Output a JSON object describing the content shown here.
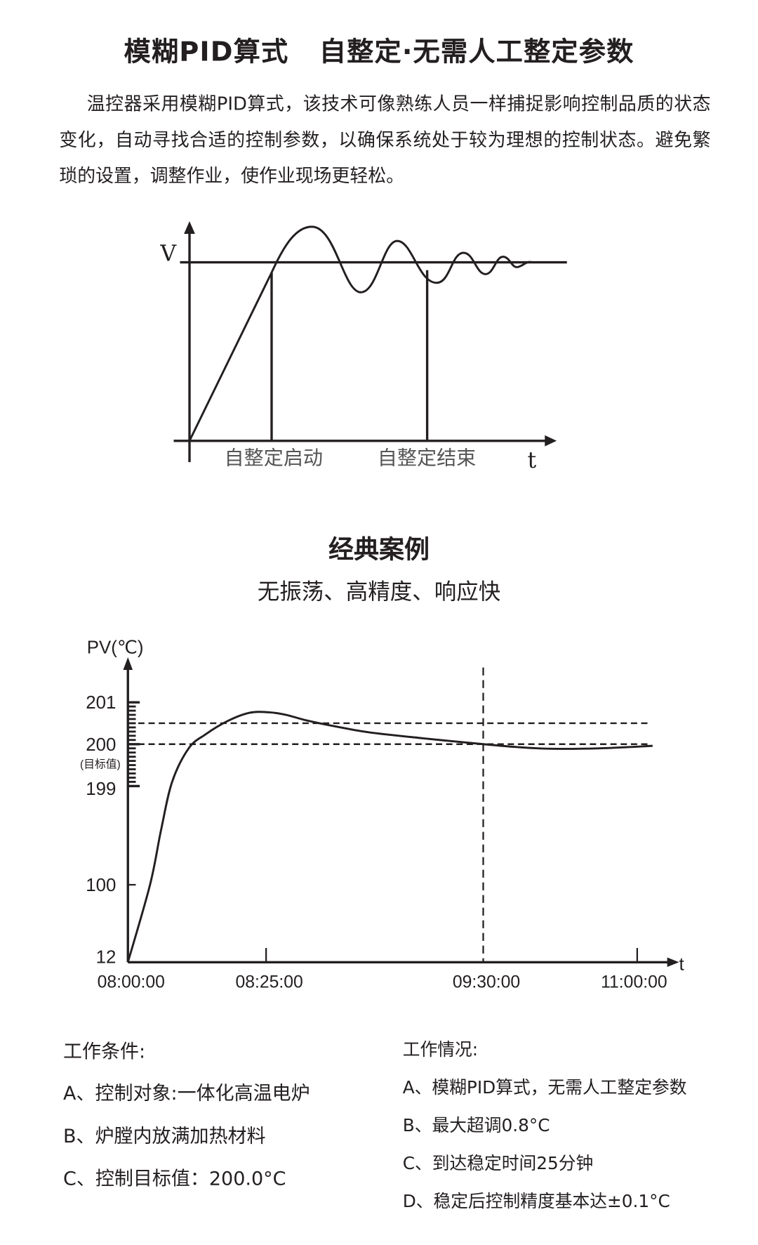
{
  "header": {
    "title": "模糊PID算式   自整定·无需人工整定参数",
    "description": "温控器采用模糊PID算式，该技术可像熟练人员一样捕捉影响控制品质的状态变化，自动寻找合适的控制参数，以确保系统处于较为理想的控制状态。避免繁琐的设置，调整作业，使作业现场更轻松。"
  },
  "diagram": {
    "y_label": "V",
    "x_label": "t",
    "start_label": "自整定启动",
    "end_label": "自整定结束"
  },
  "case": {
    "title": "经典案例",
    "subtitle": "无振荡、高精度、响应快"
  },
  "chart_data": {
    "type": "line",
    "ylabel": "PV(℃)",
    "xlabel": "t",
    "x_ticks": [
      "08:00:00",
      "08:25:00",
      "09:30:00",
      "11:00:00"
    ],
    "x_tick_minutes": [
      0,
      25,
      90,
      180
    ],
    "y_ticks": [
      12,
      100,
      199,
      200,
      201
    ],
    "y_tick_labels": [
      "12",
      "100",
      "199",
      "200",
      "201"
    ],
    "y_target_note": "(目标值)",
    "minor_tick_step": 0.1,
    "reference_lines": {
      "horizontal": [
        200,
        200.5
      ],
      "vertical_minutes": 90
    },
    "series": [
      {
        "points_minutes_temp": [
          [
            0,
            12
          ],
          [
            4,
            100
          ],
          [
            6,
            155
          ],
          [
            8,
            199.1
          ],
          [
            11,
            199.9
          ],
          [
            14,
            200.23
          ],
          [
            18,
            200.55
          ],
          [
            22,
            200.75
          ],
          [
            26,
            200.76
          ],
          [
            31,
            200.7
          ],
          [
            37,
            200.57
          ],
          [
            46,
            200.42
          ],
          [
            56,
            200.28
          ],
          [
            72,
            200.14
          ],
          [
            90,
            200
          ],
          [
            110,
            199.93
          ],
          [
            130,
            199.89
          ],
          [
            158,
            199.9
          ],
          [
            189,
            199.96
          ]
        ]
      }
    ],
    "colors": {
      "line": "#231f20"
    }
  },
  "conditions": {
    "title": "工作条件:",
    "items": [
      "A、控制对象:一体化高温电炉",
      "B、炉膛内放满加热材料",
      "C、控制目标值：200.0°C"
    ]
  },
  "status": {
    "title": "工作情况:",
    "items": [
      "A、模糊PID算式，无需人工整定参数",
      "B、最大超调0.8°C",
      "C、到达稳定时间25分钟",
      "D、稳定后控制精度基本达±0.1°C"
    ]
  }
}
